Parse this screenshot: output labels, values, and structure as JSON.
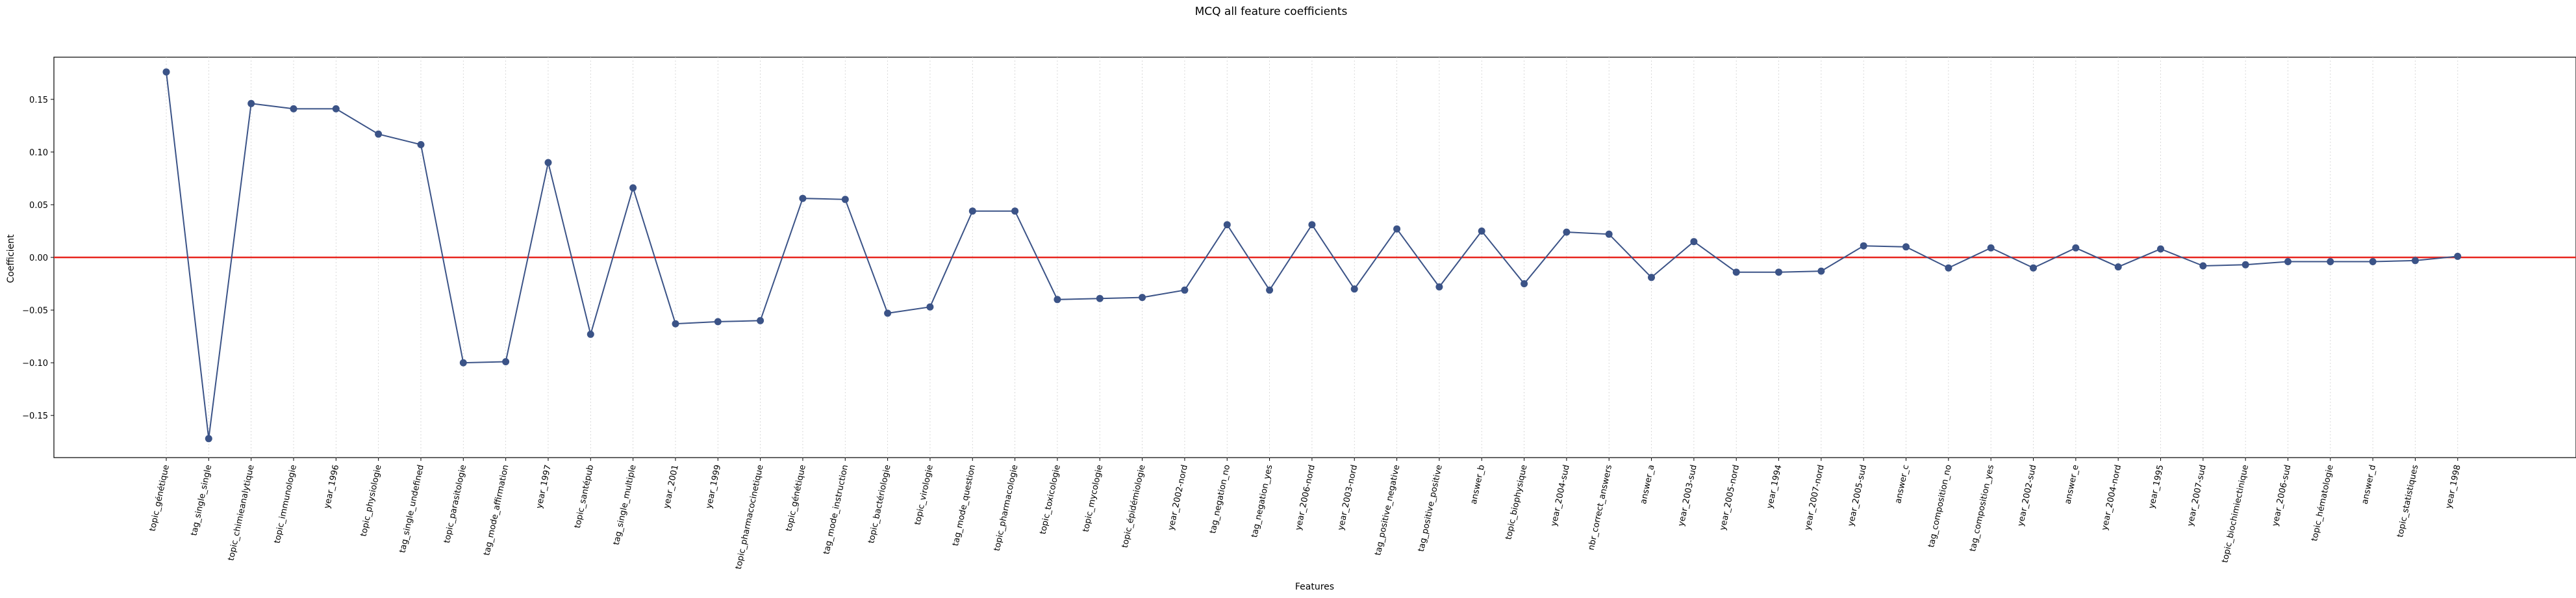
{
  "chart_data": {
    "type": "line",
    "title": "MCQ all feature coefficients",
    "xlabel": "Features",
    "ylabel": "Coefficient",
    "ylim": [
      -0.19,
      0.19
    ],
    "yticks": [
      0.15,
      0.1,
      0.05,
      0.0,
      -0.05,
      -0.1,
      -0.15
    ],
    "ytick_labels": [
      "0.15",
      "0.10",
      "0.05",
      "0.00",
      "−0.05",
      "−0.10",
      "−0.15"
    ],
    "grid": "vertical dotted",
    "reference_line": {
      "y": 0.0,
      "color": "#e8261f"
    },
    "line_color": "#3b5387",
    "categories": [
      "topic_génétique",
      "tag_single_single",
      "topic_chimieanalytique",
      "topic_immunologie",
      "year_1996",
      "topic_physiologie",
      "tag_single_undefined",
      "topic_parasitologie",
      "tag_mode_affirmation",
      "year_1997",
      "topic_santépub",
      "tag_single_multiple",
      "year_2001",
      "year_1999",
      "topic_pharmacocinetique",
      "topic_génétique",
      "tag_mode_instruction",
      "topic_bactériologie",
      "topic_virologie",
      "tag_mode_question",
      "topic_pharmacologie",
      "topic_toxicologie",
      "topic_mycologie",
      "topic_épidémiologie",
      "year_2002-nord",
      "tag_negation_no",
      "tag_negation_yes",
      "year_2006-nord",
      "year_2003-nord",
      "tag_positive_negative",
      "tag_positive_positive",
      "answer_b",
      "topic_biophysique",
      "year_2004-sud",
      "nbr_correct_answers",
      "answer_a",
      "year_2003-sud",
      "year_2005-nord",
      "year_1994",
      "year_2007-nord",
      "year_2005-sud",
      "answer_c",
      "tag_composition_no",
      "tag_composition_yes",
      "year_2002-sud",
      "answer_e",
      "year_2004-nord",
      "year_1995",
      "year_2007-sud",
      "topic_biochimiectinique",
      "year_2006-sud",
      "topic_hématologie",
      "answer_d",
      "topic_statistiques",
      "year_1998"
    ],
    "values": [
      0.176,
      -0.172,
      0.146,
      0.141,
      0.141,
      0.117,
      0.107,
      -0.1,
      -0.099,
      0.09,
      -0.073,
      0.066,
      -0.063,
      -0.061,
      -0.06,
      0.056,
      0.055,
      -0.053,
      -0.047,
      0.044,
      0.044,
      -0.04,
      -0.039,
      -0.038,
      -0.031,
      0.031,
      -0.031,
      0.031,
      -0.03,
      0.027,
      -0.028,
      0.025,
      -0.025,
      0.024,
      0.022,
      -0.019,
      0.015,
      -0.014,
      -0.014,
      -0.013,
      0.011,
      0.01,
      -0.01,
      0.009,
      -0.01,
      0.009,
      -0.009,
      0.008,
      -0.008,
      -0.007,
      -0.004,
      -0.004,
      -0.004,
      -0.003,
      0.001
    ]
  }
}
